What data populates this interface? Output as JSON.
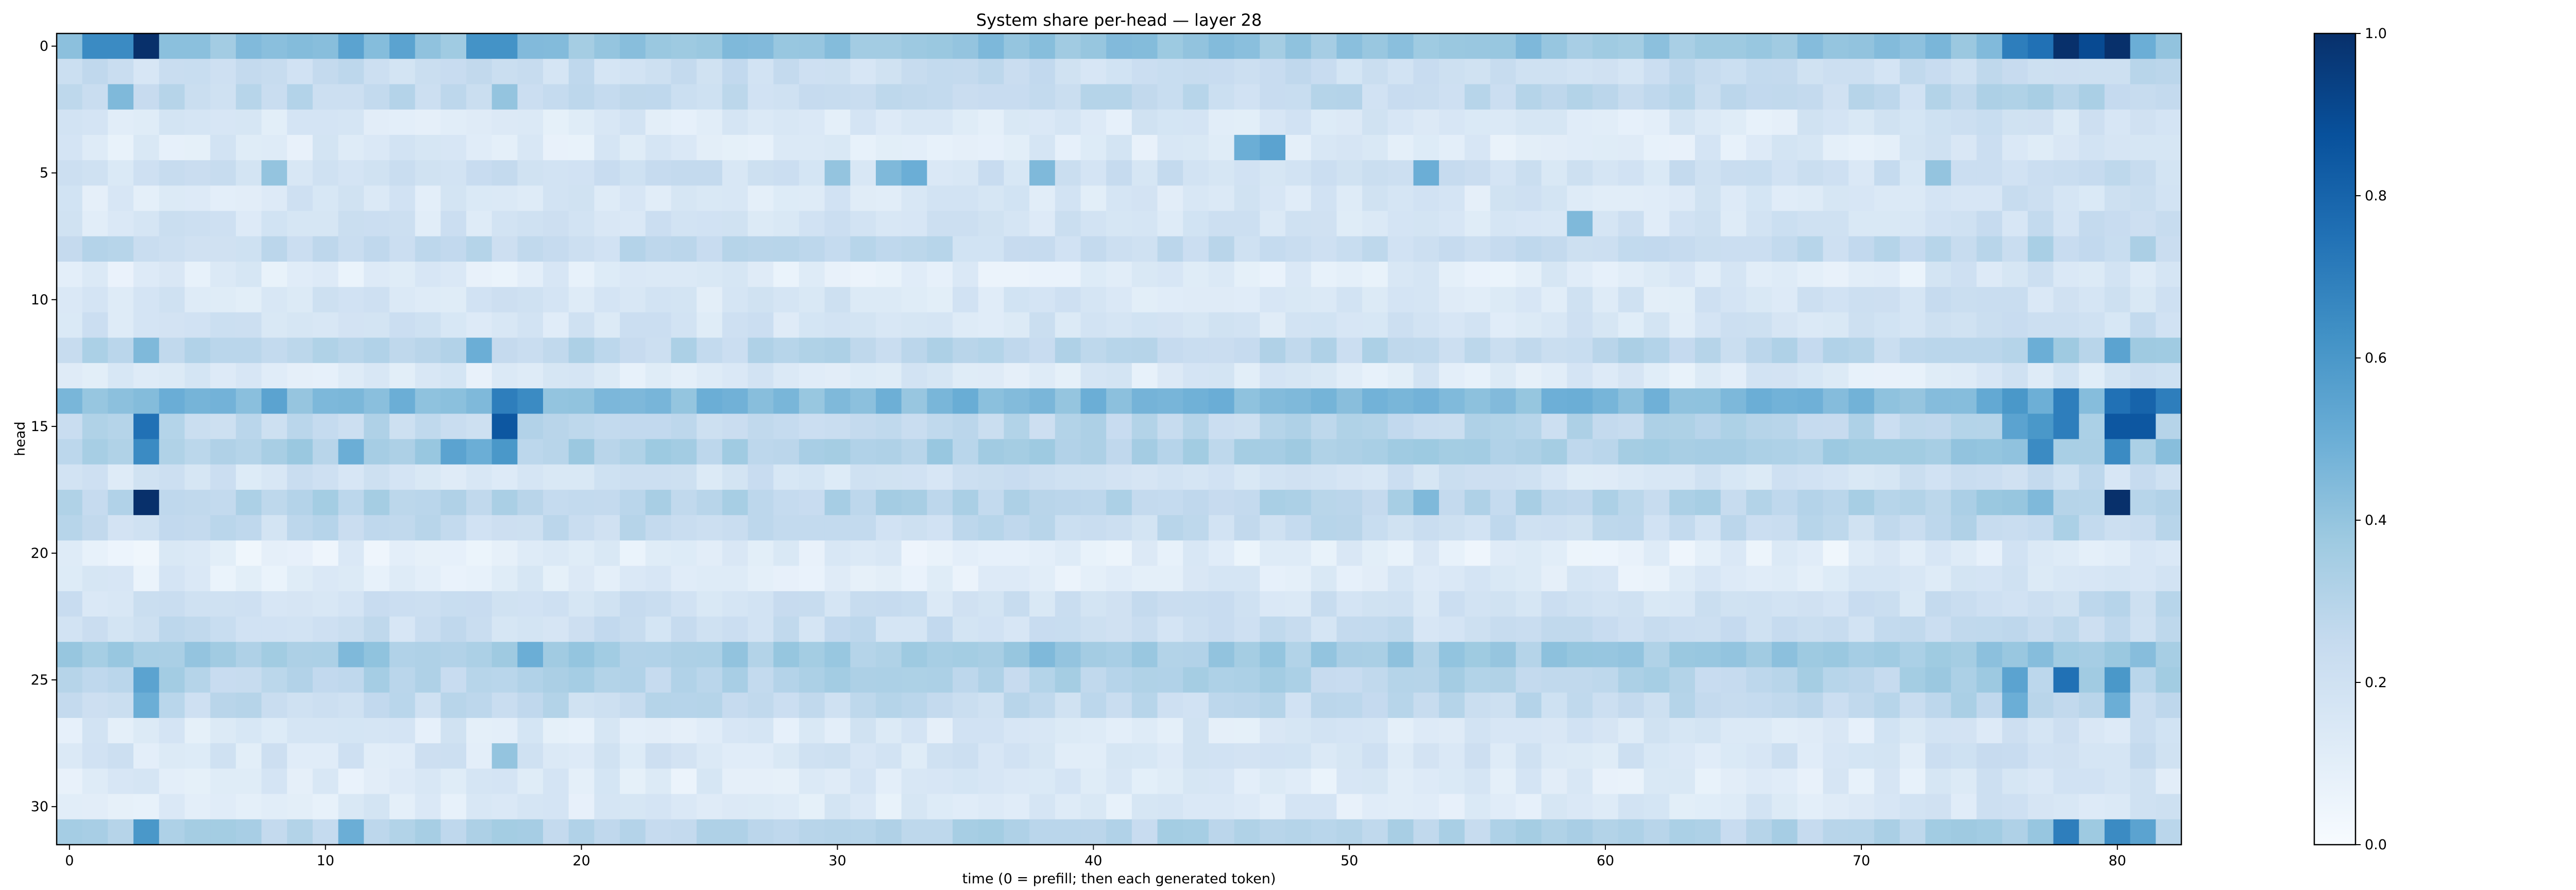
{
  "chart_data": {
    "type": "heatmap",
    "title": "System share per-head — layer 28",
    "xlabel": "time (0 = prefill; then each generated token)",
    "ylabel": "head",
    "x_ticks": [
      0,
      10,
      20,
      30,
      40,
      50,
      60,
      70,
      80
    ],
    "y_ticks": [
      0,
      5,
      10,
      15,
      20,
      25,
      30
    ],
    "xlim": [
      -0.5,
      82.5
    ],
    "ylim": [
      31.5,
      -0.5
    ],
    "n_heads": 32,
    "n_steps": 83,
    "colormap": "Blues",
    "colorbar": {
      "range": [
        0.0,
        1.0
      ],
      "ticks": [
        "0.0",
        "0.2",
        "0.4",
        "0.6",
        "0.8",
        "1.0"
      ]
    },
    "row_baseline": [
      0.4,
      0.22,
      0.25,
      0.14,
      0.13,
      0.2,
      0.15,
      0.17,
      0.25,
      0.12,
      0.16,
      0.17,
      0.28,
      0.13,
      0.45,
      0.27,
      0.33,
      0.18,
      0.3,
      0.24,
      0.1,
      0.12,
      0.2,
      0.22,
      0.36,
      0.3,
      0.25,
      0.14,
      0.16,
      0.12,
      0.13,
      0.3
    ],
    "highlights": [
      {
        "head": 0,
        "t": 1,
        "v": 0.65
      },
      {
        "head": 0,
        "t": 2,
        "v": 0.65
      },
      {
        "head": 0,
        "t": 3,
        "v": 1.0
      },
      {
        "head": 0,
        "t": 11,
        "v": 0.55
      },
      {
        "head": 0,
        "t": 13,
        "v": 0.55
      },
      {
        "head": 0,
        "t": 16,
        "v": 0.62
      },
      {
        "head": 0,
        "t": 17,
        "v": 0.62
      },
      {
        "head": 0,
        "t": 76,
        "v": 0.7
      },
      {
        "head": 0,
        "t": 77,
        "v": 0.75
      },
      {
        "head": 0,
        "t": 78,
        "v": 1.0
      },
      {
        "head": 0,
        "t": 79,
        "v": 0.9
      },
      {
        "head": 0,
        "t": 80,
        "v": 1.0
      },
      {
        "head": 0,
        "t": 81,
        "v": 0.5
      },
      {
        "head": 2,
        "t": 2,
        "v": 0.45
      },
      {
        "head": 2,
        "t": 17,
        "v": 0.4
      },
      {
        "head": 4,
        "t": 46,
        "v": 0.5
      },
      {
        "head": 4,
        "t": 47,
        "v": 0.55
      },
      {
        "head": 5,
        "t": 8,
        "v": 0.4
      },
      {
        "head": 5,
        "t": 30,
        "v": 0.4
      },
      {
        "head": 5,
        "t": 32,
        "v": 0.45
      },
      {
        "head": 5,
        "t": 33,
        "v": 0.5
      },
      {
        "head": 5,
        "t": 38,
        "v": 0.45
      },
      {
        "head": 5,
        "t": 53,
        "v": 0.5
      },
      {
        "head": 5,
        "t": 73,
        "v": 0.4
      },
      {
        "head": 7,
        "t": 59,
        "v": 0.45
      },
      {
        "head": 12,
        "t": 3,
        "v": 0.45
      },
      {
        "head": 12,
        "t": 16,
        "v": 0.5
      },
      {
        "head": 12,
        "t": 77,
        "v": 0.5
      },
      {
        "head": 12,
        "t": 80,
        "v": 0.55
      },
      {
        "head": 14,
        "t": 8,
        "v": 0.55
      },
      {
        "head": 14,
        "t": 17,
        "v": 0.7
      },
      {
        "head": 14,
        "t": 18,
        "v": 0.65
      },
      {
        "head": 14,
        "t": 76,
        "v": 0.6
      },
      {
        "head": 14,
        "t": 78,
        "v": 0.7
      },
      {
        "head": 14,
        "t": 80,
        "v": 0.75
      },
      {
        "head": 14,
        "t": 81,
        "v": 0.8
      },
      {
        "head": 14,
        "t": 82,
        "v": 0.7
      },
      {
        "head": 15,
        "t": 3,
        "v": 0.75
      },
      {
        "head": 15,
        "t": 17,
        "v": 0.85
      },
      {
        "head": 15,
        "t": 76,
        "v": 0.55
      },
      {
        "head": 15,
        "t": 77,
        "v": 0.6
      },
      {
        "head": 15,
        "t": 78,
        "v": 0.7
      },
      {
        "head": 15,
        "t": 80,
        "v": 0.85
      },
      {
        "head": 15,
        "t": 81,
        "v": 0.85
      },
      {
        "head": 16,
        "t": 3,
        "v": 0.65
      },
      {
        "head": 16,
        "t": 11,
        "v": 0.5
      },
      {
        "head": 16,
        "t": 15,
        "v": 0.55
      },
      {
        "head": 16,
        "t": 16,
        "v": 0.5
      },
      {
        "head": 16,
        "t": 17,
        "v": 0.6
      },
      {
        "head": 16,
        "t": 77,
        "v": 0.65
      },
      {
        "head": 16,
        "t": 80,
        "v": 0.65
      },
      {
        "head": 18,
        "t": 3,
        "v": 1.0
      },
      {
        "head": 18,
        "t": 53,
        "v": 0.45
      },
      {
        "head": 18,
        "t": 77,
        "v": 0.45
      },
      {
        "head": 18,
        "t": 80,
        "v": 1.0
      },
      {
        "head": 24,
        "t": 5,
        "v": 0.4
      },
      {
        "head": 24,
        "t": 11,
        "v": 0.45
      },
      {
        "head": 24,
        "t": 18,
        "v": 0.5
      },
      {
        "head": 24,
        "t": 38,
        "v": 0.45
      },
      {
        "head": 25,
        "t": 3,
        "v": 0.55
      },
      {
        "head": 25,
        "t": 76,
        "v": 0.55
      },
      {
        "head": 25,
        "t": 78,
        "v": 0.75
      },
      {
        "head": 25,
        "t": 80,
        "v": 0.6
      },
      {
        "head": 26,
        "t": 3,
        "v": 0.5
      },
      {
        "head": 26,
        "t": 76,
        "v": 0.5
      },
      {
        "head": 26,
        "t": 80,
        "v": 0.5
      },
      {
        "head": 28,
        "t": 17,
        "v": 0.4
      },
      {
        "head": 31,
        "t": 3,
        "v": 0.6
      },
      {
        "head": 31,
        "t": 11,
        "v": 0.5
      },
      {
        "head": 31,
        "t": 78,
        "v": 0.7
      },
      {
        "head": 31,
        "t": 80,
        "v": 0.65
      },
      {
        "head": 31,
        "t": 81,
        "v": 0.55
      }
    ]
  }
}
